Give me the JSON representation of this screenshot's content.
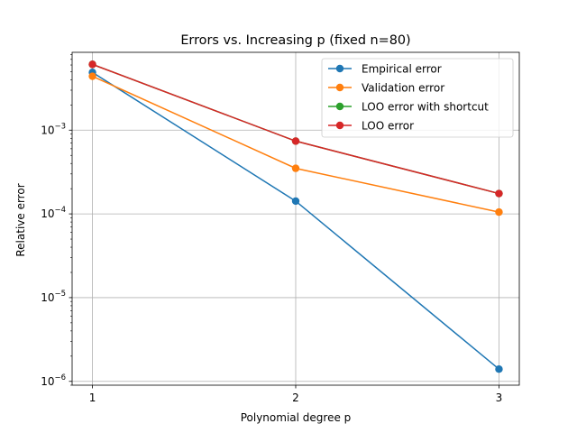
{
  "chart_data": {
    "type": "line",
    "title": "Errors vs. Increasing p (fixed n=80)",
    "xlabel": "Polynomial degree p",
    "ylabel": "Relative error",
    "x": [
      1,
      2,
      3
    ],
    "xticks": [
      "1",
      "2",
      "3"
    ],
    "xlim": [
      0.9,
      3.1
    ],
    "yscale": "log",
    "ylim": [
      9e-07,
      0.0085
    ],
    "yticks": [
      {
        "value": 1e-06,
        "base": "10",
        "exp": "−6"
      },
      {
        "value": 1e-05,
        "base": "10",
        "exp": "−5"
      },
      {
        "value": 0.0001,
        "base": "10",
        "exp": "−4"
      },
      {
        "value": 0.001,
        "base": "10",
        "exp": "−3"
      }
    ],
    "grid": true,
    "legend_position": "top-right",
    "series": [
      {
        "name": "Empirical error",
        "color": "#1f77b4",
        "values": [
          0.0049,
          0.000142,
          1.4e-06
        ]
      },
      {
        "name": "Validation error",
        "color": "#ff7f0e",
        "values": [
          0.0044,
          0.00035,
          0.000105
        ]
      },
      {
        "name": "LOO error with shortcut",
        "color": "#2ca02c",
        "values": [
          0.0061,
          0.00074,
          0.000175
        ]
      },
      {
        "name": "LOO error",
        "color": "#d62728",
        "values": [
          0.0061,
          0.00074,
          0.000175
        ]
      }
    ]
  }
}
